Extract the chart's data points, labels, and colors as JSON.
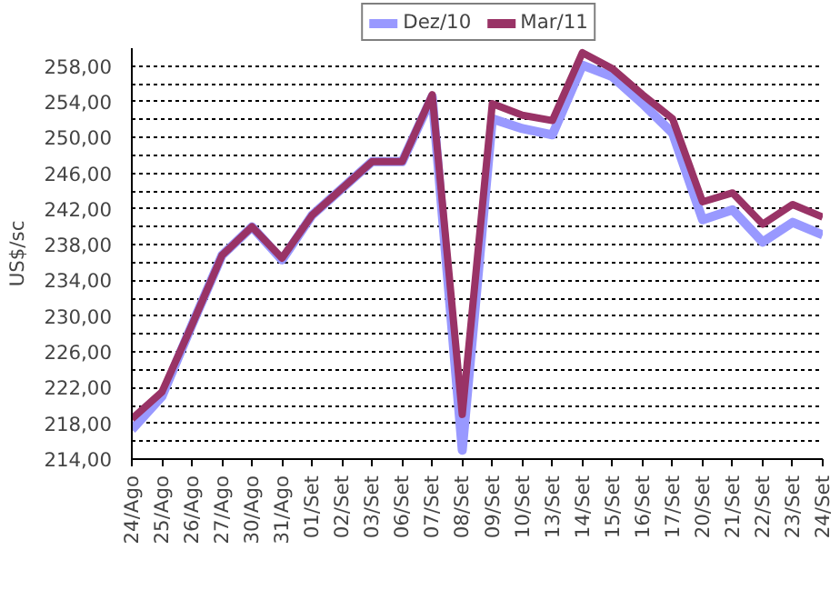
{
  "chart_data": {
    "type": "line",
    "ylabel": "US$/sc",
    "categories": [
      "24/Ago",
      "25/Ago",
      "26/Ago",
      "27/Ago",
      "30/Ago",
      "31/Ago",
      "01/Set",
      "02/Set",
      "03/Set",
      "06/Set",
      "07/Set",
      "08/Set",
      "09/Set",
      "10/Set",
      "13/Set",
      "14/Set",
      "15/Set",
      "16/Set",
      "17/Set",
      "20/Set",
      "21/Set",
      "22/Set",
      "23/Set",
      "24/Set"
    ],
    "series": [
      {
        "name": "Dez/10",
        "color": "#9999ff",
        "values": [
          217.3,
          221,
          229,
          236.8,
          240,
          236.3,
          241.3,
          244.3,
          247.3,
          247.3,
          254.6,
          215,
          252.1,
          251,
          250.3,
          258.1,
          256.8,
          253.8,
          250.5,
          240.8,
          241.9,
          238.3,
          240.5,
          239.1
        ]
      },
      {
        "name": "Mar/11",
        "color": "#993366",
        "values": [
          218.5,
          221.5,
          229,
          236.8,
          240,
          236.5,
          241.3,
          244.3,
          247.3,
          247.3,
          254.8,
          219,
          253.8,
          252.5,
          251.9,
          259.5,
          257.7,
          254.8,
          252.1,
          242.8,
          243.8,
          240.3,
          242.5,
          241.1
        ]
      }
    ],
    "ylim": [
      214,
      260
    ],
    "yticks": [
      {
        "value": 214,
        "label": "214,00"
      },
      {
        "value": 216,
        "label": null
      },
      {
        "value": 218,
        "label": "218,00"
      },
      {
        "value": 220,
        "label": null
      },
      {
        "value": 222,
        "label": "222,00"
      },
      {
        "value": 224,
        "label": null
      },
      {
        "value": 226,
        "label": "226,00"
      },
      {
        "value": 228,
        "label": null
      },
      {
        "value": 230,
        "label": "230,00"
      },
      {
        "value": 232,
        "label": null
      },
      {
        "value": 234,
        "label": "234,00"
      },
      {
        "value": 236,
        "label": null
      },
      {
        "value": 238,
        "label": "238,00"
      },
      {
        "value": 240,
        "label": null
      },
      {
        "value": 242,
        "label": "242,00"
      },
      {
        "value": 244,
        "label": null
      },
      {
        "value": 246,
        "label": "246,00"
      },
      {
        "value": 248,
        "label": null
      },
      {
        "value": 250,
        "label": "250,00"
      },
      {
        "value": 252,
        "label": null
      },
      {
        "value": 254,
        "label": "254,00"
      },
      {
        "value": 256,
        "label": null
      },
      {
        "value": 258,
        "label": "258,00"
      }
    ],
    "grid": "y",
    "legend": "top",
    "marker": "none",
    "line_style": "solid"
  }
}
